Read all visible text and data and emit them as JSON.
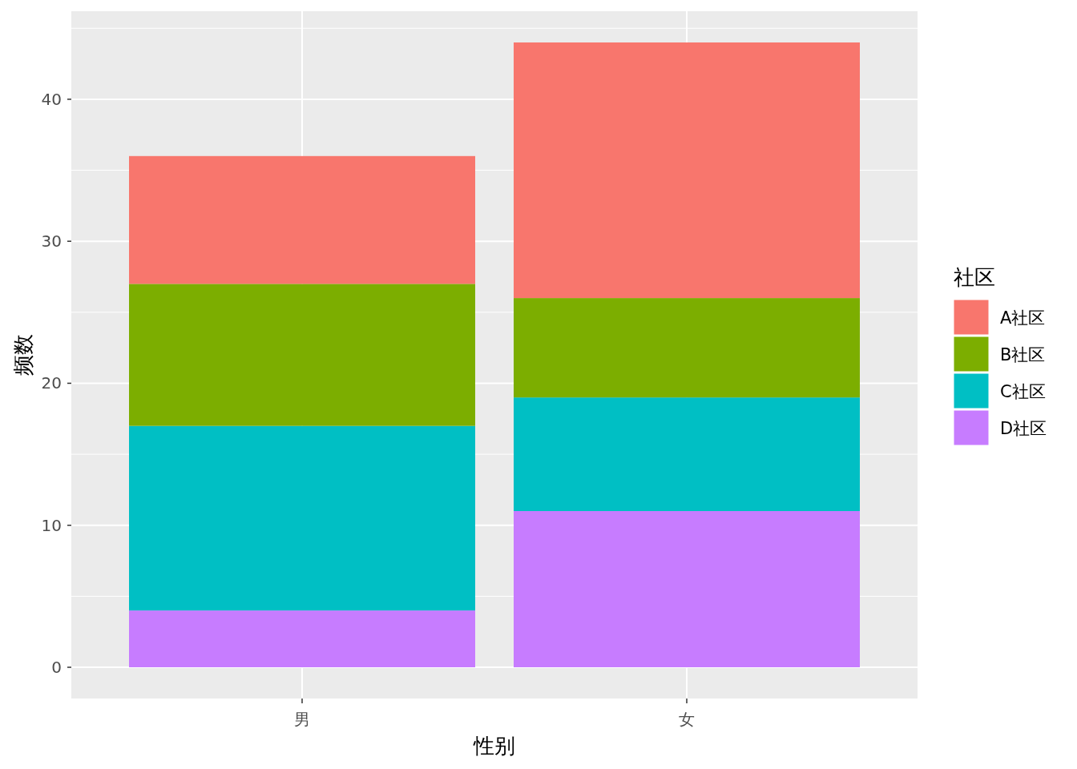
{
  "chart_data": {
    "type": "bar",
    "stacked": true,
    "xlabel": "性别",
    "ylabel": "频数",
    "legend_title": "社区",
    "categories": [
      "男",
      "女"
    ],
    "series": [
      {
        "name": "D社区",
        "color": "#c77cff",
        "values": [
          4,
          11
        ]
      },
      {
        "name": "C社区",
        "color": "#00bfc4",
        "values": [
          13,
          8
        ]
      },
      {
        "name": "B社区",
        "color": "#7cae00",
        "values": [
          10,
          7
        ]
      },
      {
        "name": "A社区",
        "color": "#f8766d",
        "values": [
          9,
          18
        ]
      }
    ],
    "ylim": [
      -2.2,
      46.2
    ],
    "yticks": [
      0,
      10,
      20,
      30,
      40
    ],
    "grid": true,
    "legend": "right"
  }
}
